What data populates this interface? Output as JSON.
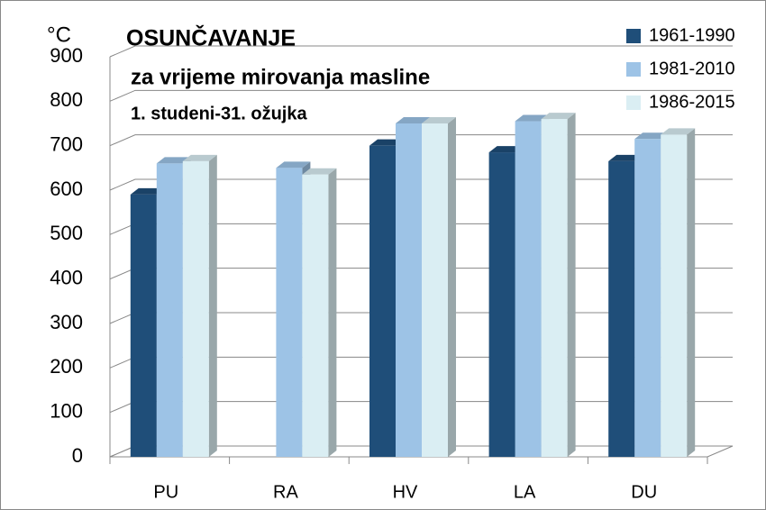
{
  "chart_data": {
    "type": "bar3d",
    "title": "OSUNČAVANJE",
    "subtitle": "za vrijeme mirovanja masline",
    "annotation": "1. studeni-31. ožujka",
    "y_label": "°C",
    "categories": [
      "PU",
      "RA",
      "HV",
      "LA",
      "DU"
    ],
    "series": [
      {
        "name": "1961-1990",
        "color": "#1f4e79",
        "values": [
          590,
          null,
          700,
          685,
          665
        ]
      },
      {
        "name": "1981-2010",
        "color": "#9dc3e6",
        "values": [
          660,
          650,
          750,
          755,
          715
        ]
      },
      {
        "name": "1986-2015",
        "color": "#daeef3",
        "values": [
          665,
          635,
          750,
          760,
          725
        ]
      }
    ],
    "ylim": [
      0,
      900
    ],
    "yticks": [
      0,
      100,
      200,
      300,
      400,
      500,
      600,
      700,
      800,
      900
    ],
    "grid": true,
    "legend": "top-right"
  }
}
